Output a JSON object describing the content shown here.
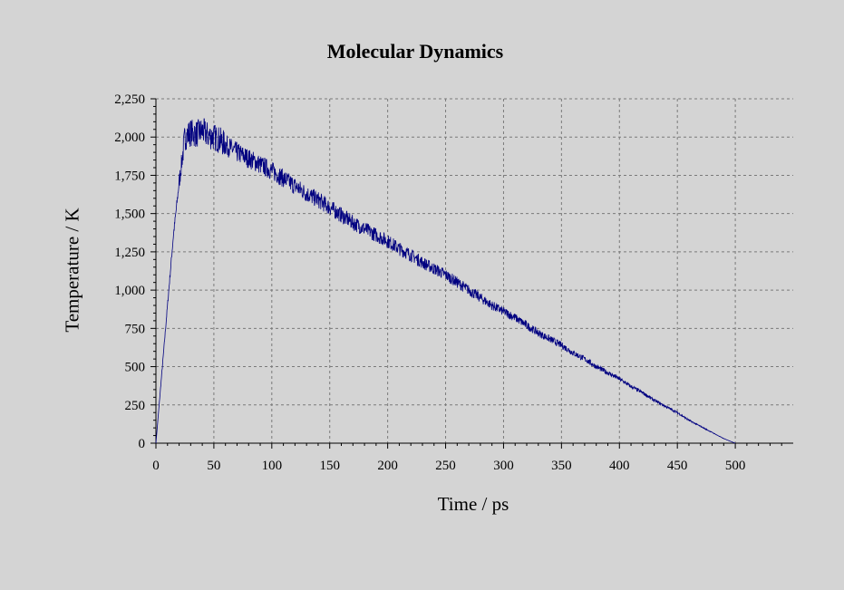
{
  "chart_data": {
    "type": "line",
    "title": "Molecular Dynamics",
    "xlabel": "Time / ps",
    "ylabel": "Temperature / K",
    "xlim": [
      0,
      550
    ],
    "ylim": [
      0,
      2250
    ],
    "x_ticks": [
      0,
      50,
      100,
      150,
      200,
      250,
      300,
      350,
      400,
      450,
      500
    ],
    "x_tick_labels": [
      "0",
      "50",
      "100",
      "150",
      "200",
      "250",
      "300",
      "350",
      "400",
      "450",
      "500"
    ],
    "y_ticks": [
      0,
      250,
      500,
      750,
      1000,
      1250,
      1500,
      1750,
      2000,
      2250
    ],
    "y_tick_labels": [
      "0",
      "250",
      "500",
      "750",
      "1,000",
      "1,250",
      "1,500",
      "1,750",
      "2,000",
      "2,250"
    ],
    "grid": true,
    "grid_style": "dashed",
    "series": [
      {
        "color": "#000080",
        "x": [
          0,
          5,
          10,
          15,
          20,
          25,
          30,
          35,
          40,
          45,
          50,
          55,
          60,
          70,
          80,
          90,
          100,
          110,
          120,
          130,
          140,
          150,
          160,
          170,
          180,
          190,
          200,
          210,
          220,
          230,
          240,
          250,
          260,
          270,
          280,
          290,
          300,
          310,
          320,
          330,
          340,
          350,
          360,
          370,
          380,
          390,
          400,
          410,
          420,
          430,
          440,
          450,
          460,
          470,
          480,
          490,
          500
        ],
        "y": [
          0,
          450,
          900,
          1350,
          1700,
          2000,
          2030,
          2020,
          2040,
          2010,
          2000,
          1980,
          1950,
          1900,
          1860,
          1820,
          1780,
          1730,
          1680,
          1630,
          1590,
          1540,
          1490,
          1440,
          1400,
          1360,
          1320,
          1270,
          1230,
          1180,
          1140,
          1100,
          1050,
          1000,
          950,
          900,
          860,
          820,
          770,
          720,
          680,
          640,
          590,
          550,
          500,
          460,
          420,
          370,
          330,
          280,
          240,
          200,
          150,
          110,
          70,
          30,
          0
        ]
      }
    ]
  }
}
